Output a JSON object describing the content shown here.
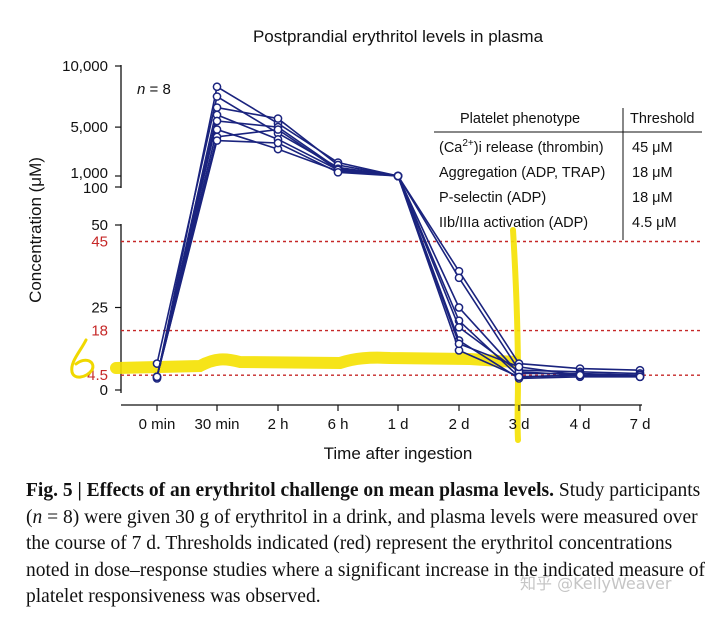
{
  "chart_data": {
    "type": "line",
    "title": "Postprandial erythritol levels in plasma",
    "xlabel": "Time after ingestion",
    "ylabel": "Concentration (μM)",
    "annotation": "n = 8",
    "categories": [
      "0 min",
      "30 min",
      "2 h",
      "6 h",
      "1 d",
      "2 d",
      "3 d",
      "4 d",
      "7 d"
    ],
    "y_axis": {
      "type": "broken",
      "lower_segment": {
        "range": [
          0,
          50
        ],
        "ticks": [
          "0",
          "25",
          "50"
        ]
      },
      "upper_segment": {
        "range": [
          100,
          10000
        ],
        "ticks": [
          "100",
          "1,000",
          "5,000",
          "10,000"
        ]
      }
    },
    "thresholds": [
      {
        "label": "4.5",
        "value": 4.5,
        "color": "#c62828"
      },
      {
        "label": "18",
        "value": 18,
        "color": "#c62828"
      },
      {
        "label": "45",
        "value": 45,
        "color": "#c62828"
      }
    ],
    "series_color": "#1a237e",
    "series": [
      {
        "values": [
          3.5,
          8300,
          5300,
          2100,
          1000,
          36,
          8,
          6.5,
          6
        ]
      },
      {
        "values": [
          8,
          7500,
          4500,
          1700,
          1000,
          34,
          6,
          5.5,
          5
        ]
      },
      {
        "values": [
          4,
          6600,
          5700,
          1900,
          1000,
          25,
          5,
          5,
          4.5
        ]
      },
      {
        "values": [
          4,
          6000,
          4000,
          1500,
          1000,
          21,
          4,
          4.5,
          4
        ]
      },
      {
        "values": [
          4,
          5500,
          5000,
          1600,
          1000,
          19,
          5.5,
          4.5,
          4.5
        ]
      },
      {
        "values": [
          4,
          4800,
          3200,
          1400,
          1000,
          15,
          3.5,
          4,
          4
        ]
      },
      {
        "values": [
          4,
          4200,
          4800,
          1500,
          1000,
          12,
          4,
          4.5,
          4.5
        ]
      },
      {
        "values": [
          4,
          3900,
          3700,
          1300,
          1000,
          14,
          7,
          4.5,
          4
        ]
      }
    ],
    "table": {
      "headers": [
        "Platelet phenotype",
        "Threshold"
      ],
      "rows": [
        {
          "phenotype_pre": "(Ca",
          "phenotype_sup": "2+",
          "phenotype_post": ")i release (thrombin)",
          "threshold": "45 μM"
        },
        {
          "phenotype_pre": "Aggregation (ADP, TRAP)",
          "phenotype_sup": "",
          "phenotype_post": "",
          "threshold": "18 μM"
        },
        {
          "phenotype_pre": "P-selectin (ADP)",
          "phenotype_sup": "",
          "phenotype_post": "",
          "threshold": "18 μM"
        },
        {
          "phenotype_pre": "IIb/IIIa activation (ADP)",
          "phenotype_sup": "",
          "phenotype_post": "",
          "threshold": "4.5 μM"
        }
      ]
    },
    "handwritten_annotation": "6",
    "highlight_color": "#f5e100"
  },
  "caption": {
    "lead": "Fig. 5 | Effects of an erythritol challenge on mean plasma levels.",
    "body_1": " Study participants (",
    "n_symbol": "n",
    "body_2": " = 8) were given 30 g of erythritol in a drink, and plasma levels were measured over the course of 7 d. Thresholds indicated (red) represent the erythritol concentrations noted in dose–response studies where a significant increase in the indicated measure of platelet responsiveness was observed."
  },
  "watermark": "知乎 @KellyWeaver"
}
